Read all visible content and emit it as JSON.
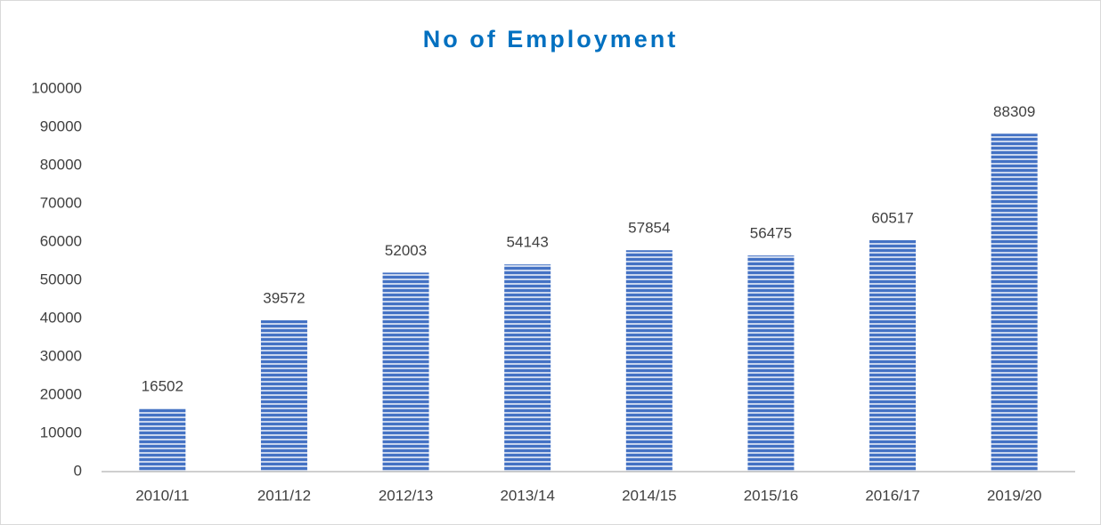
{
  "chart_data": {
    "type": "bar",
    "title": "No of Employment",
    "categories": [
      "2010/11",
      "2011/12",
      "2012/13",
      "2013/14",
      "2014/15",
      "2015/16",
      "2016/17",
      "2019/20"
    ],
    "values": [
      16502,
      39572,
      52003,
      54143,
      57854,
      56475,
      60517,
      88309
    ],
    "color": "#4472c4",
    "ylim": [
      0,
      100000
    ],
    "yticks": [
      0,
      10000,
      20000,
      30000,
      40000,
      50000,
      60000,
      70000,
      80000,
      90000,
      100000
    ],
    "grid": false
  }
}
